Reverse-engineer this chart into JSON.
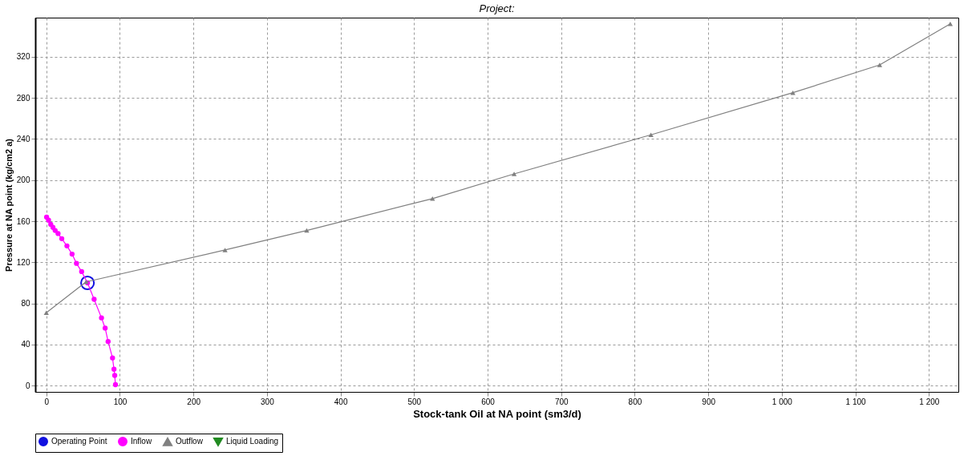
{
  "chart_data": {
    "type": "line",
    "title": "Project:",
    "xlabel": "Stock-tank Oil at NA point (sm3/d)",
    "ylabel": "Pressure at NA point (kg/cm2 a)",
    "xlim": [
      -15,
      1240
    ],
    "ylim": [
      -6,
      358
    ],
    "xticks": [
      0,
      100,
      200,
      300,
      400,
      500,
      600,
      700,
      800,
      900,
      {
        "value": 1000,
        "label": "1 000"
      },
      {
        "value": 1100,
        "label": "1 100"
      },
      {
        "value": 1200,
        "label": "1 200"
      }
    ],
    "yticks": [
      0,
      40,
      80,
      120,
      160,
      200,
      240,
      280,
      320
    ],
    "grid": true,
    "legend": "bottom",
    "line_style": "solid",
    "series": [
      {
        "name": "Operating Point",
        "type": "scatter",
        "marker": "circle",
        "color": "#1010e0",
        "x": [
          56
        ],
        "values": [
          100
        ]
      },
      {
        "name": "Inflow",
        "marker": "circle",
        "color": "#ff00ff",
        "x": [
          0.4,
          3,
          6,
          9,
          12,
          16,
          21,
          28,
          35,
          41,
          48,
          56,
          65,
          75,
          80,
          84,
          90,
          92,
          93,
          94
        ],
        "values": [
          164,
          161,
          157,
          154,
          151,
          148,
          143,
          136,
          128,
          119,
          111,
          100,
          84,
          66,
          56,
          43,
          27,
          16,
          10,
          1
        ]
      },
      {
        "name": "Outflow",
        "marker": "triangle",
        "color": "#808080",
        "x": [
          0,
          54,
          243,
          354,
          525,
          636,
          822,
          1015,
          1133,
          1229
        ],
        "values": [
          71,
          101,
          132,
          151,
          182,
          206,
          244,
          285,
          312,
          352
        ]
      },
      {
        "name": "Liquid Loading",
        "marker": "triangle-down",
        "color": "#228b22"
      }
    ]
  }
}
